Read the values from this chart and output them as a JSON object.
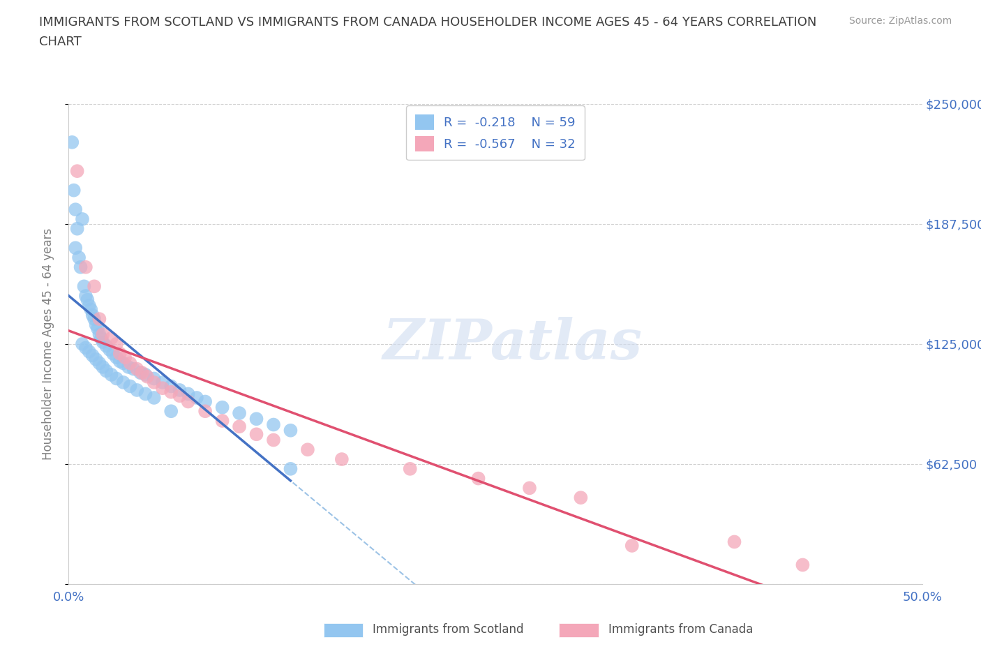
{
  "title_line1": "IMMIGRANTS FROM SCOTLAND VS IMMIGRANTS FROM CANADA HOUSEHOLDER INCOME AGES 45 - 64 YEARS CORRELATION",
  "title_line2": "CHART",
  "source": "Source: ZipAtlas.com",
  "ylabel": "Householder Income Ages 45 - 64 years",
  "xlim": [
    0.0,
    0.5
  ],
  "ylim": [
    0,
    250000
  ],
  "yticks": [
    0,
    62500,
    125000,
    187500,
    250000
  ],
  "ytick_labels": [
    "",
    "$62,500",
    "$125,000",
    "$187,500",
    "$250,000"
  ],
  "xticks": [
    0.0,
    0.1,
    0.2,
    0.3,
    0.4,
    0.5
  ],
  "xtick_labels": [
    "0.0%",
    "",
    "",
    "",
    "",
    "50.0%"
  ],
  "scotland_color": "#93C6F0",
  "canada_color": "#F4A7B9",
  "scotland_R": -0.218,
  "scotland_N": 59,
  "canada_R": -0.567,
  "canada_N": 32,
  "scotland_line_color": "#4472C4",
  "canada_line_color": "#E05070",
  "dashed_line_color": "#9DC3E6",
  "watermark": "ZIPatlas",
  "background_color": "#FFFFFF",
  "grid_color": "#D0D0D0",
  "title_color": "#404040",
  "axis_label_color": "#808080",
  "tick_label_color": "#4472C4",
  "scotland_x": [
    0.002,
    0.003,
    0.004,
    0.004,
    0.005,
    0.006,
    0.007,
    0.008,
    0.009,
    0.01,
    0.011,
    0.012,
    0.013,
    0.014,
    0.015,
    0.016,
    0.017,
    0.018,
    0.019,
    0.02,
    0.022,
    0.024,
    0.026,
    0.028,
    0.03,
    0.032,
    0.035,
    0.038,
    0.042,
    0.045,
    0.05,
    0.055,
    0.06,
    0.065,
    0.07,
    0.075,
    0.08,
    0.09,
    0.1,
    0.11,
    0.12,
    0.13,
    0.008,
    0.01,
    0.012,
    0.014,
    0.016,
    0.018,
    0.02,
    0.022,
    0.025,
    0.028,
    0.032,
    0.036,
    0.04,
    0.045,
    0.05,
    0.06,
    0.13
  ],
  "scotland_y": [
    230000,
    205000,
    195000,
    175000,
    185000,
    170000,
    165000,
    190000,
    155000,
    150000,
    148000,
    145000,
    143000,
    140000,
    138000,
    135000,
    133000,
    130000,
    128000,
    126000,
    124000,
    122000,
    120000,
    118000,
    116000,
    115000,
    113000,
    112000,
    110000,
    109000,
    107000,
    105000,
    103000,
    101000,
    99000,
    97000,
    95000,
    92000,
    89000,
    86000,
    83000,
    80000,
    125000,
    123000,
    121000,
    119000,
    117000,
    115000,
    113000,
    111000,
    109000,
    107000,
    105000,
    103000,
    101000,
    99000,
    97000,
    90000,
    60000
  ],
  "canada_x": [
    0.005,
    0.01,
    0.015,
    0.018,
    0.02,
    0.025,
    0.028,
    0.03,
    0.033,
    0.036,
    0.04,
    0.043,
    0.046,
    0.05,
    0.055,
    0.06,
    0.065,
    0.07,
    0.08,
    0.09,
    0.1,
    0.11,
    0.12,
    0.14,
    0.16,
    0.2,
    0.24,
    0.27,
    0.3,
    0.33,
    0.39,
    0.43
  ],
  "canada_y": [
    215000,
    165000,
    155000,
    138000,
    130000,
    128000,
    125000,
    120000,
    118000,
    115000,
    112000,
    110000,
    108000,
    105000,
    102000,
    100000,
    98000,
    95000,
    90000,
    85000,
    82000,
    78000,
    75000,
    70000,
    65000,
    60000,
    55000,
    50000,
    45000,
    20000,
    22000,
    10000
  ]
}
